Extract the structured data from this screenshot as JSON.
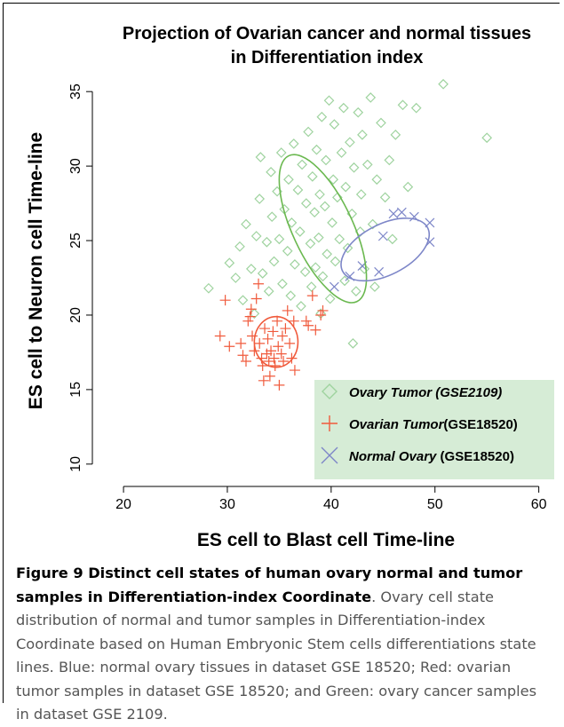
{
  "caption": {
    "heading": "Figure 9 Distinct cell states of human ovary normal and tumor samples in Differentiation-index Coordinate",
    "body": ". Ovary cell state distribution of normal and tumor samples in Differentiation-index Coordinate based on Human Embryonic Stem cells differentiations state lines. Blue: normal ovary tissues in dataset GSE 18520; Red: ovarian tumor samples in dataset GSE 18520; and Green: ovary cancer samples in dataset GSE 2109."
  },
  "chart_data": {
    "type": "scatter",
    "title_lines": [
      "Projection of Ovarian cancer and normal tissues",
      "in Differentiation index"
    ],
    "xlabel": "ES cell to Blast cell Time-line",
    "ylabel": "ES cell to Neuron cell Time-line",
    "xlim": [
      17,
      62
    ],
    "ylim": [
      8.5,
      36.5
    ],
    "xticks": [
      20,
      30,
      40,
      50,
      60
    ],
    "yticks": [
      10,
      15,
      20,
      25,
      30,
      35
    ],
    "grid": false,
    "legend": {
      "position": "bottom-right",
      "background": "#d6ecd6",
      "entries": [
        {
          "series_index": 0,
          "parts": [
            {
              "text": "Ovary  Tumor",
              "italic": true
            },
            {
              "text": " (GSE2109)",
              "italic": true
            }
          ]
        },
        {
          "series_index": 1,
          "parts": [
            {
              "text": "Ovarian Tumor",
              "italic": true
            },
            {
              "text": "(GSE18520)",
              "italic": false
            }
          ]
        },
        {
          "series_index": 2,
          "parts": [
            {
              "text": "Normal Ovary",
              "italic": true
            },
            {
              "text": " (GSE18520)",
              "italic": false
            }
          ]
        }
      ]
    },
    "series": [
      {
        "name": "Ovary  Tumor (GSE2109)",
        "marker": "diamond",
        "color": "#9fd39f",
        "ellipse": {
          "cx": 39.2,
          "cy": 25.8,
          "rx": 2.9,
          "ry": 5.4,
          "rot": -25,
          "color": "#6ab84f"
        },
        "points": [
          [
            28.2,
            21.8
          ],
          [
            30.2,
            23.5
          ],
          [
            30.8,
            22.5
          ],
          [
            31.2,
            24.6
          ],
          [
            31.5,
            21.0
          ],
          [
            31.8,
            26.1
          ],
          [
            32.3,
            23.1
          ],
          [
            32.6,
            20.1
          ],
          [
            32.8,
            25.3
          ],
          [
            33.1,
            27.8
          ],
          [
            33.2,
            30.6
          ],
          [
            33.4,
            22.8
          ],
          [
            33.8,
            24.9
          ],
          [
            34.0,
            21.6
          ],
          [
            34.2,
            29.6
          ],
          [
            34.3,
            26.6
          ],
          [
            34.5,
            23.6
          ],
          [
            34.8,
            28.3
          ],
          [
            35.0,
            25.1
          ],
          [
            35.2,
            30.9
          ],
          [
            35.3,
            22.1
          ],
          [
            35.5,
            27.1
          ],
          [
            35.8,
            24.3
          ],
          [
            35.9,
            29.1
          ],
          [
            36.1,
            21.3
          ],
          [
            36.2,
            26.2
          ],
          [
            36.4,
            31.5
          ],
          [
            36.5,
            23.4
          ],
          [
            36.8,
            28.4
          ],
          [
            37.0,
            25.6
          ],
          [
            37.1,
            20.6
          ],
          [
            37.2,
            30.1
          ],
          [
            37.5,
            22.9
          ],
          [
            37.6,
            27.5
          ],
          [
            37.8,
            32.3
          ],
          [
            38.0,
            24.8
          ],
          [
            38.1,
            21.9
          ],
          [
            38.2,
            29.3
          ],
          [
            38.4,
            26.9
          ],
          [
            38.5,
            23.2
          ],
          [
            38.6,
            31.1
          ],
          [
            38.8,
            25.2
          ],
          [
            38.9,
            28.1
          ],
          [
            39.0,
            20.1
          ],
          [
            39.1,
            33.3
          ],
          [
            39.2,
            22.6
          ],
          [
            39.4,
            27.3
          ],
          [
            39.5,
            30.4
          ],
          [
            39.6,
            24.1
          ],
          [
            39.8,
            34.4
          ],
          [
            39.9,
            21.1
          ],
          [
            40.1,
            26.2
          ],
          [
            40.2,
            29.1
          ],
          [
            40.3,
            32.8
          ],
          [
            40.4,
            23.6
          ],
          [
            40.6,
            27.9
          ],
          [
            40.8,
            25.1
          ],
          [
            41.0,
            30.9
          ],
          [
            41.2,
            33.9
          ],
          [
            41.3,
            22.3
          ],
          [
            41.4,
            28.6
          ],
          [
            41.6,
            24.5
          ],
          [
            41.8,
            31.6
          ],
          [
            42.0,
            26.8
          ],
          [
            42.1,
            18.1
          ],
          [
            42.2,
            29.9
          ],
          [
            42.4,
            21.6
          ],
          [
            42.6,
            33.6
          ],
          [
            42.8,
            25.6
          ],
          [
            42.9,
            28.1
          ],
          [
            43.0,
            32.1
          ],
          [
            43.2,
            23.1
          ],
          [
            43.5,
            30.1
          ],
          [
            43.8,
            34.6
          ],
          [
            44.0,
            26.1
          ],
          [
            44.2,
            21.9
          ],
          [
            44.4,
            29.1
          ],
          [
            44.8,
            32.9
          ],
          [
            45.2,
            27.9
          ],
          [
            45.6,
            30.4
          ],
          [
            45.9,
            25.1
          ],
          [
            46.2,
            32.1
          ],
          [
            46.9,
            34.1
          ],
          [
            47.4,
            28.6
          ],
          [
            48.2,
            33.9
          ],
          [
            50.8,
            35.5
          ],
          [
            55.0,
            31.9
          ]
        ]
      },
      {
        "name": "Ovarian Tumor(GSE18520)",
        "marker": "plus",
        "color": "#f05a3c",
        "ellipse": {
          "cx": 34.7,
          "cy": 18.2,
          "rx": 2.1,
          "ry": 1.7,
          "rot": 0,
          "color": "#f05a3c"
        },
        "points": [
          [
            29.3,
            18.6
          ],
          [
            29.8,
            21.0
          ],
          [
            30.2,
            17.9
          ],
          [
            31.3,
            18.1
          ],
          [
            31.5,
            17.3
          ],
          [
            31.8,
            16.9
          ],
          [
            32.0,
            19.6
          ],
          [
            32.2,
            19.9
          ],
          [
            32.3,
            20.4
          ],
          [
            32.4,
            18.6
          ],
          [
            32.6,
            17.6
          ],
          [
            32.8,
            21.1
          ],
          [
            33.0,
            22.1
          ],
          [
            33.1,
            18.1
          ],
          [
            33.3,
            17.1
          ],
          [
            33.4,
            16.6
          ],
          [
            33.5,
            15.6
          ],
          [
            33.6,
            19.1
          ],
          [
            33.8,
            17.4
          ],
          [
            33.9,
            18.4
          ],
          [
            34.0,
            16.9
          ],
          [
            34.1,
            15.9
          ],
          [
            34.2,
            17.6
          ],
          [
            34.4,
            18.9
          ],
          [
            34.5,
            17.1
          ],
          [
            34.6,
            16.6
          ],
          [
            34.8,
            19.6
          ],
          [
            34.9,
            17.9
          ],
          [
            35.0,
            15.3
          ],
          [
            35.2,
            17.4
          ],
          [
            35.3,
            18.6
          ],
          [
            35.4,
            16.9
          ],
          [
            35.6,
            19.1
          ],
          [
            35.8,
            20.3
          ],
          [
            36.0,
            18.1
          ],
          [
            36.2,
            17.1
          ],
          [
            36.4,
            19.6
          ],
          [
            36.5,
            16.3
          ],
          [
            37.6,
            19.6
          ],
          [
            37.8,
            19.3
          ],
          [
            38.2,
            21.3
          ],
          [
            38.5,
            19.0
          ],
          [
            39.0,
            20.0
          ],
          [
            39.2,
            20.3
          ]
        ]
      },
      {
        "name": "Normal Ovary (GSE18520)",
        "marker": "x",
        "color": "#7d86c8",
        "ellipse": {
          "cx": 45.2,
          "cy": 24.4,
          "rx": 4.6,
          "ry": 1.7,
          "rot": -27,
          "color": "#7d86c8"
        },
        "points": [
          [
            40.3,
            21.9
          ],
          [
            41.8,
            22.6
          ],
          [
            43.0,
            23.3
          ],
          [
            44.6,
            22.9
          ],
          [
            45.0,
            25.3
          ],
          [
            46.0,
            26.8
          ],
          [
            46.8,
            26.9
          ],
          [
            48.0,
            26.6
          ],
          [
            49.5,
            26.2
          ],
          [
            49.5,
            24.9
          ]
        ]
      }
    ]
  }
}
